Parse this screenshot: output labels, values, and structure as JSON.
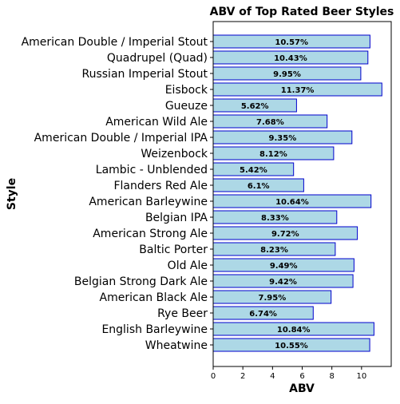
{
  "chart_data": {
    "type": "bar",
    "orientation": "horizontal",
    "title": "ABV of Top Rated Beer Styles",
    "xlabel": "ABV",
    "ylabel": "Style",
    "xlim": [
      0,
      12
    ],
    "xticks": [
      0,
      2,
      4,
      6,
      8,
      10
    ],
    "grid": false,
    "bar_color": "#add8e6",
    "bar_edge_color": "#0000cc",
    "categories": [
      "American Double / Imperial Stout",
      "Quadrupel (Quad)",
      "Russian Imperial Stout",
      "Eisbock",
      "Gueuze",
      "American Wild Ale",
      "American Double / Imperial IPA",
      "Weizenbock",
      "Lambic - Unblended",
      "Flanders Red Ale",
      "American Barleywine",
      "Belgian IPA",
      "American Strong Ale",
      "Baltic Porter",
      "Old Ale",
      "Belgian Strong Dark Ale",
      "American Black Ale",
      "Rye Beer",
      "English Barleywine",
      "Wheatwine"
    ],
    "values": [
      10.57,
      10.43,
      9.95,
      11.37,
      5.62,
      7.68,
      9.35,
      8.12,
      5.42,
      6.1,
      10.64,
      8.33,
      9.72,
      8.23,
      9.49,
      9.42,
      7.95,
      6.74,
      10.84,
      10.55
    ],
    "data_labels": [
      "10.57%",
      "10.43%",
      "9.95%",
      "11.37%",
      "5.62%",
      "7.68%",
      "9.35%",
      "8.12%",
      "5.42%",
      "6.1%",
      "10.64%",
      "8.33%",
      "9.72%",
      "8.23%",
      "9.49%",
      "9.42%",
      "7.95%",
      "6.74%",
      "10.84%",
      "10.55%"
    ]
  }
}
